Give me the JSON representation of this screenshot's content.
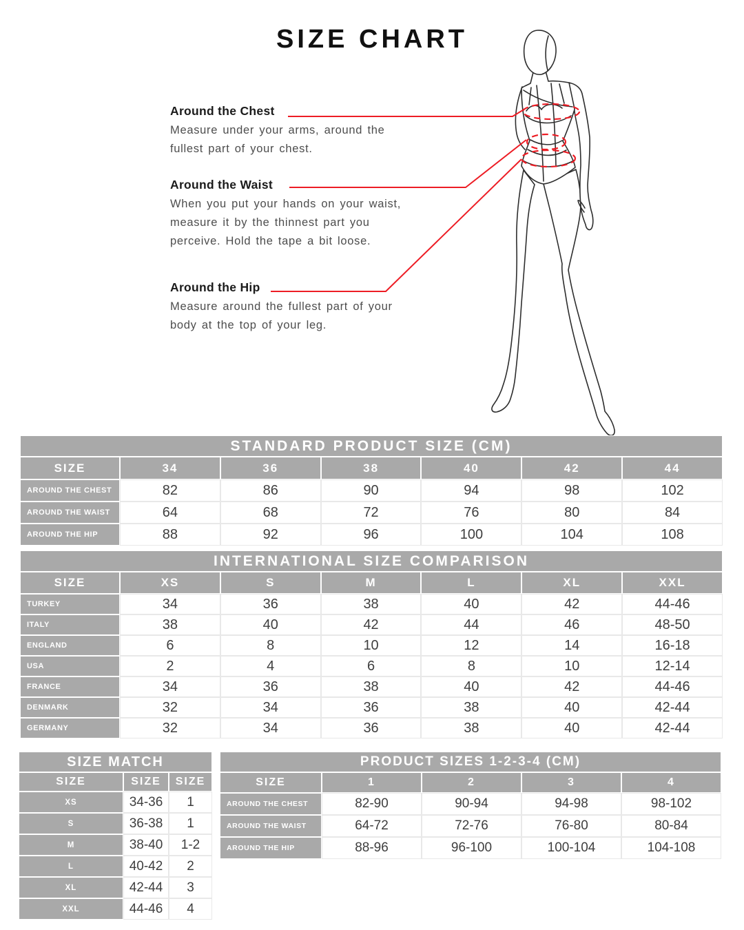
{
  "page": {
    "title": "SIZE CHART"
  },
  "colors": {
    "accent_red": "#ed1c24",
    "table_gray": "#a9a9a9"
  },
  "measure_guide": {
    "items": [
      {
        "title": "Around the Chest",
        "lines": [
          "Measure under your arms, around the",
          "fullest part of your chest."
        ]
      },
      {
        "title": "Around the Waist",
        "lines": [
          "When you put your hands on your waist,",
          "measure it by the thinnest part you",
          "perceive. Hold the tape a bit loose."
        ]
      },
      {
        "title": "Around the Hip",
        "lines": [
          "Measure around the fullest part of your",
          "body at the top of your leg."
        ]
      }
    ]
  },
  "standard_table": {
    "title": "STANDARD PRODUCT SIZE (CM)",
    "corner_label": "SIZE",
    "columns": [
      "34",
      "36",
      "38",
      "40",
      "42",
      "44"
    ],
    "rows": [
      {
        "label": "AROUND THE CHEST",
        "values": [
          "82",
          "86",
          "90",
          "94",
          "98",
          "102"
        ]
      },
      {
        "label": "AROUND THE WAIST",
        "values": [
          "64",
          "68",
          "72",
          "76",
          "80",
          "84"
        ]
      },
      {
        "label": "AROUND THE HIP",
        "values": [
          "88",
          "92",
          "96",
          "100",
          "104",
          "108"
        ]
      }
    ]
  },
  "international_table": {
    "title": "INTERNATIONAL SIZE COMPARISON",
    "corner_label": "SIZE",
    "columns": [
      "XS",
      "S",
      "M",
      "L",
      "XL",
      "XXL"
    ],
    "rows": [
      {
        "label": "TURKEY",
        "values": [
          "34",
          "36",
          "38",
          "40",
          "42",
          "44-46"
        ]
      },
      {
        "label": "ITALY",
        "values": [
          "38",
          "40",
          "42",
          "44",
          "46",
          "48-50"
        ]
      },
      {
        "label": "ENGLAND",
        "values": [
          "6",
          "8",
          "10",
          "12",
          "14",
          "16-18"
        ]
      },
      {
        "label": "USA",
        "values": [
          "2",
          "4",
          "6",
          "8",
          "10",
          "12-14"
        ]
      },
      {
        "label": "FRANCE",
        "values": [
          "34",
          "36",
          "38",
          "40",
          "42",
          "44-46"
        ]
      },
      {
        "label": "DENMARK",
        "values": [
          "32",
          "34",
          "36",
          "38",
          "40",
          "42-44"
        ]
      },
      {
        "label": "GERMANY",
        "values": [
          "32",
          "34",
          "36",
          "38",
          "40",
          "42-44"
        ]
      }
    ]
  },
  "size_match_table": {
    "title": "SIZE MATCH",
    "columns": [
      "SIZE",
      "SIZE",
      "SIZE"
    ],
    "rows": [
      {
        "label": "XS",
        "values": [
          "34-36",
          "1"
        ]
      },
      {
        "label": "S",
        "values": [
          "36-38",
          "1"
        ]
      },
      {
        "label": "M",
        "values": [
          "38-40",
          "1-2"
        ]
      },
      {
        "label": "L",
        "values": [
          "40-42",
          "2"
        ]
      },
      {
        "label": "XL",
        "values": [
          "42-44",
          "3"
        ]
      },
      {
        "label": "XXL",
        "values": [
          "44-46",
          "4"
        ]
      }
    ]
  },
  "product_sizes_table": {
    "title": "PRODUCT SIZES 1-2-3-4 (CM)",
    "corner_label": "SIZE",
    "columns": [
      "1",
      "2",
      "3",
      "4"
    ],
    "rows": [
      {
        "label": "AROUND THE CHEST",
        "values": [
          "82-90",
          "90-94",
          "94-98",
          "98-102"
        ]
      },
      {
        "label": "AROUND THE WAIST",
        "values": [
          "64-72",
          "72-76",
          "76-80",
          "80-84"
        ]
      },
      {
        "label": "AROUND THE HIP",
        "values": [
          "88-96",
          "96-100",
          "100-104",
          "104-108"
        ]
      }
    ]
  }
}
